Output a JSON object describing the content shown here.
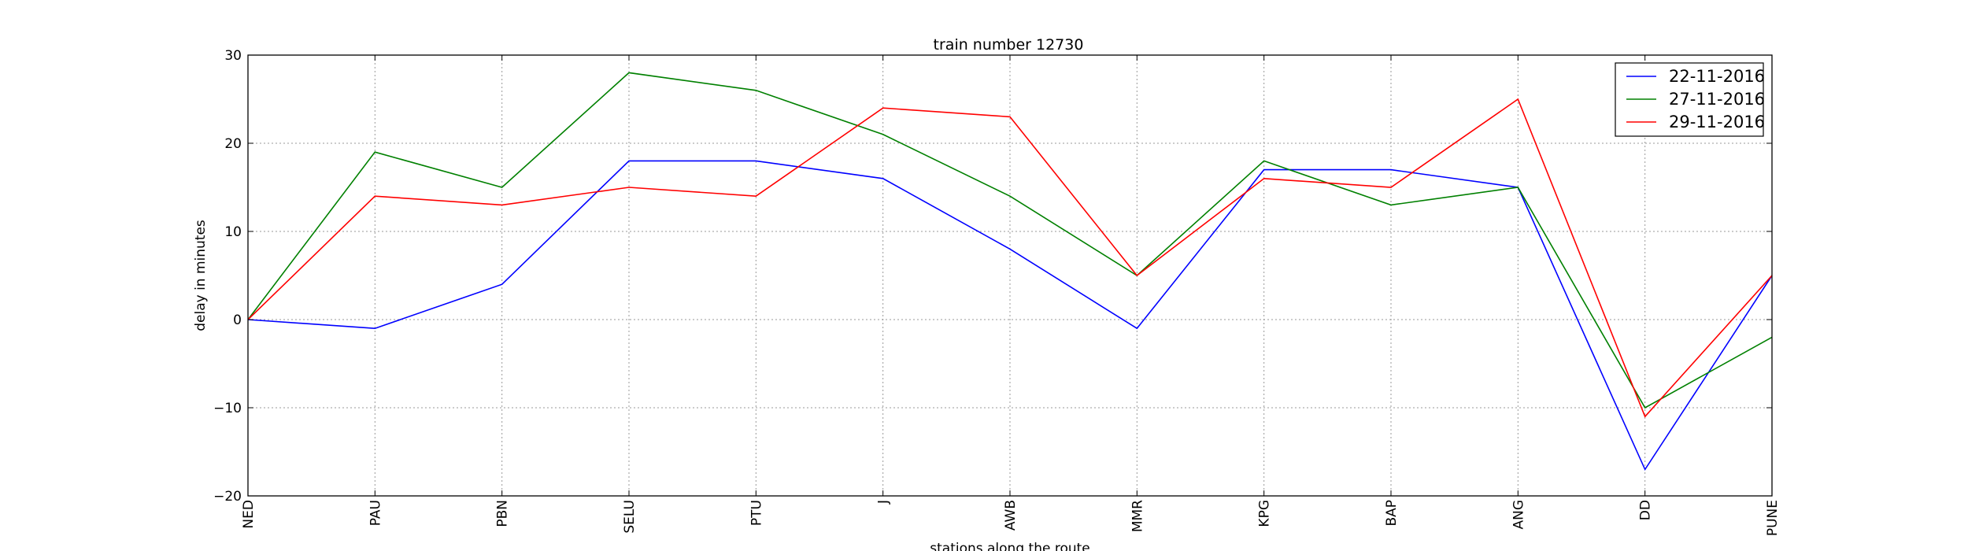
{
  "chart_data": {
    "type": "line",
    "title": "train number 12730",
    "xlabel": "stations along the route",
    "ylabel": "delay in minutes",
    "categories": [
      "NED",
      "PAU",
      "PBN",
      "SELU",
      "PTU",
      "J",
      "AWB",
      "MMR",
      "KPG",
      "BAP",
      "ANG",
      "DD",
      "PUNE"
    ],
    "ylim": [
      -20,
      30
    ],
    "yticks": [
      -20,
      -10,
      0,
      10,
      20,
      30
    ],
    "ytick_labels": [
      "−20",
      "−10",
      "0",
      "10",
      "20",
      "30"
    ],
    "grid": true,
    "legend_position": "top-right",
    "series": [
      {
        "name": "22-11-2016",
        "color": "#0000ff",
        "values": [
          0,
          -1,
          4,
          18,
          18,
          16,
          8,
          -1,
          17,
          17,
          15,
          -17,
          5
        ]
      },
      {
        "name": "27-11-2016",
        "color": "#008000",
        "values": [
          0,
          19,
          15,
          28,
          26,
          21,
          14,
          5,
          18,
          13,
          15,
          -10,
          -2
        ]
      },
      {
        "name": "29-11-2016",
        "color": "#ff0000",
        "values": [
          0,
          14,
          13,
          15,
          14,
          24,
          23,
          5,
          16,
          15,
          25,
          -11,
          5
        ]
      }
    ]
  }
}
